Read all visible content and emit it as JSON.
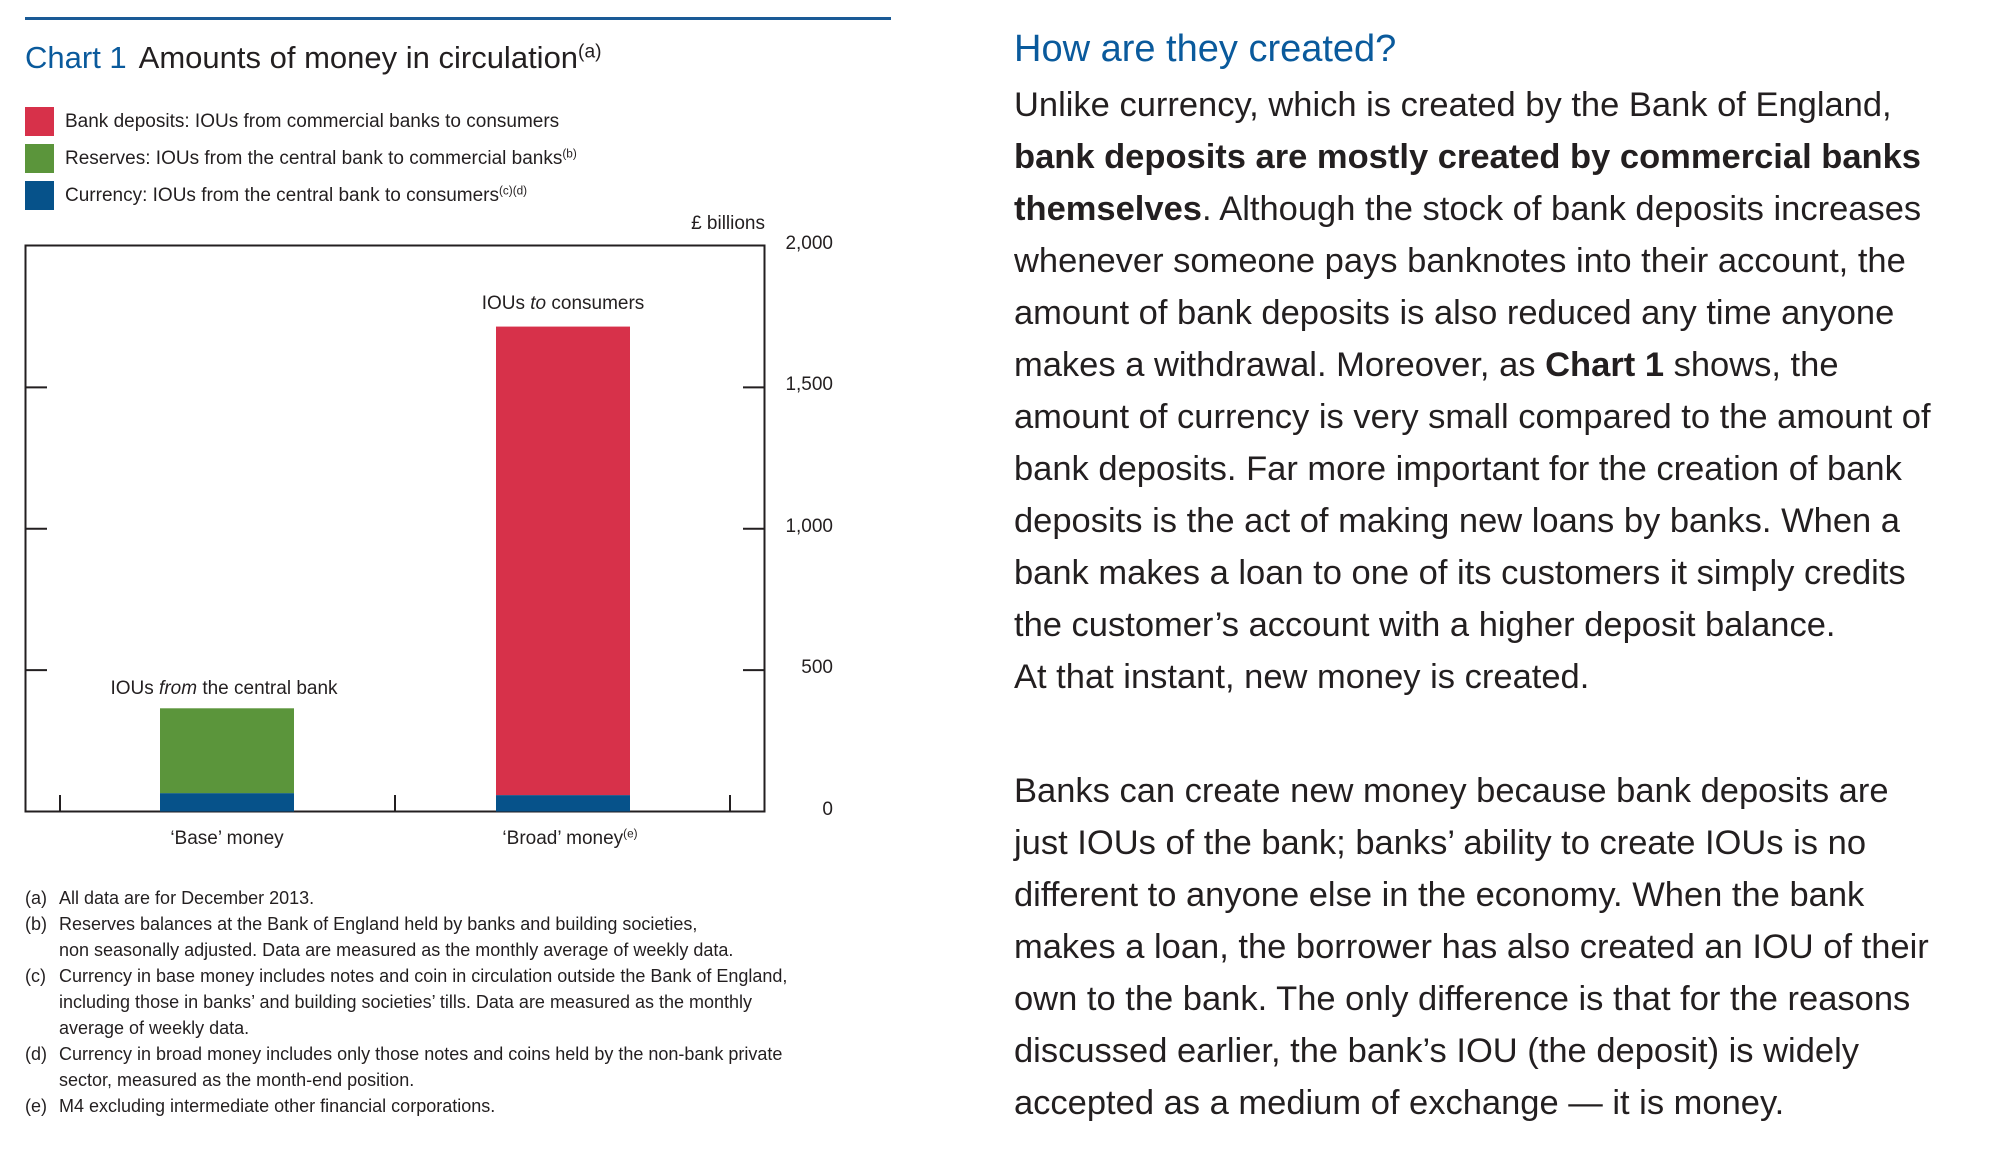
{
  "chart_data": {
    "type": "bar",
    "stacked": true,
    "title_number": "Chart 1",
    "title": "Amounts of money in circulation",
    "title_note": "(a)",
    "unit_label": "£ billions",
    "categories": [
      "'Base' money",
      "'Broad' money"
    ],
    "category_labels": [
      {
        "text": "‘Base’ money",
        "note": ""
      },
      {
        "text": "‘Broad’ money",
        "note": "(e)"
      }
    ],
    "ylim": [
      0,
      2000
    ],
    "yticks": [
      "2,000",
      "1,500",
      "1,000",
      "500",
      "0"
    ],
    "ytick_values": [
      2000,
      1500,
      1000,
      500,
      0
    ],
    "y_axis_side": "right",
    "grid": false,
    "legend_placement": "top-left",
    "series": [
      {
        "name": "Currency",
        "legend": "Currency:  IOUs from the central bank to consumers",
        "note": "(c)(d)",
        "color": "#06528a",
        "values": [
          65,
          58
        ]
      },
      {
        "name": "Reserves",
        "legend": "Reserves:  IOUs from the central bank to commercial banks",
        "note": "(b)",
        "color": "#5b953b",
        "values": [
          300,
          0
        ]
      },
      {
        "name": "Bank deposits",
        "legend": "Bank deposits:  IOUs from commercial banks to consumers",
        "note": "",
        "color": "#d7314a",
        "values": [
          0,
          1657
        ]
      }
    ],
    "annotations": [
      {
        "pre": "IOUs ",
        "em": "from",
        "post": " the central bank"
      },
      {
        "pre": "IOUs ",
        "em": "to",
        "post": " consumers"
      }
    ]
  },
  "footnotes": [
    {
      "key": "(a)",
      "lines": [
        "All data are for December 2013."
      ]
    },
    {
      "key": "(b)",
      "lines": [
        "Reserves balances at the Bank of England held by banks and building societies,",
        "non seasonally adjusted.  Data are measured as the monthly average of weekly data."
      ]
    },
    {
      "key": "(c)",
      "lines": [
        "Currency in base money includes notes and coin in circulation outside the Bank of England,",
        "including those in banks’ and building societies’ tills.  Data are measured as the monthly",
        "average of weekly data."
      ]
    },
    {
      "key": "(d)",
      "lines": [
        "Currency in broad money includes only those notes and coins held by the non-bank private",
        "sector, measured as the month-end position."
      ]
    },
    {
      "key": "(e)",
      "lines": [
        "M4 excluding intermediate other financial corporations."
      ]
    }
  ],
  "article": {
    "heading": "How are they created?",
    "paragraphs": [
      [
        [
          {
            "t": "Unlike currency, which is created by the Bank of England,"
          }
        ],
        [
          {
            "t": "bank deposits are mostly created by commercial banks",
            "b": true
          }
        ],
        [
          {
            "t": "themselves",
            "b": true
          },
          {
            "t": ".  Although the stock of bank deposits increases"
          }
        ],
        [
          {
            "t": "whenever someone pays banknotes into their account, the"
          }
        ],
        [
          {
            "t": "amount of bank deposits is also reduced any time anyone"
          }
        ],
        [
          {
            "t": "makes a withdrawal.  Moreover, as "
          },
          {
            "t": "Chart 1",
            "b": true
          },
          {
            "t": " shows, the"
          }
        ],
        [
          {
            "t": "amount of currency is very small compared to the amount of"
          }
        ],
        [
          {
            "t": "bank deposits.  Far more important for the creation of bank"
          }
        ],
        [
          {
            "t": "deposits is the act of making new loans by banks.  When a"
          }
        ],
        [
          {
            "t": "bank makes a loan to one of its customers it simply credits"
          }
        ],
        [
          {
            "t": "the customer’s account with a higher deposit balance."
          }
        ],
        [
          {
            "t": "At that instant, new money is created."
          }
        ]
      ],
      [
        [
          {
            "t": "Banks can create new money because bank deposits are"
          }
        ],
        [
          {
            "t": "just IOUs of the bank;  banks’ ability to create IOUs is no"
          }
        ],
        [
          {
            "t": "different to anyone else in the economy.  When the bank"
          }
        ],
        [
          {
            "t": "makes a loan, the borrower has also created an IOU of their"
          }
        ],
        [
          {
            "t": "own to the bank.  The only difference is that for the reasons"
          }
        ],
        [
          {
            "t": "discussed earlier, the bank’s IOU (the deposit) is widely"
          }
        ],
        [
          {
            "t": "accepted as a medium of exchange — it is money."
          }
        ]
      ]
    ]
  }
}
